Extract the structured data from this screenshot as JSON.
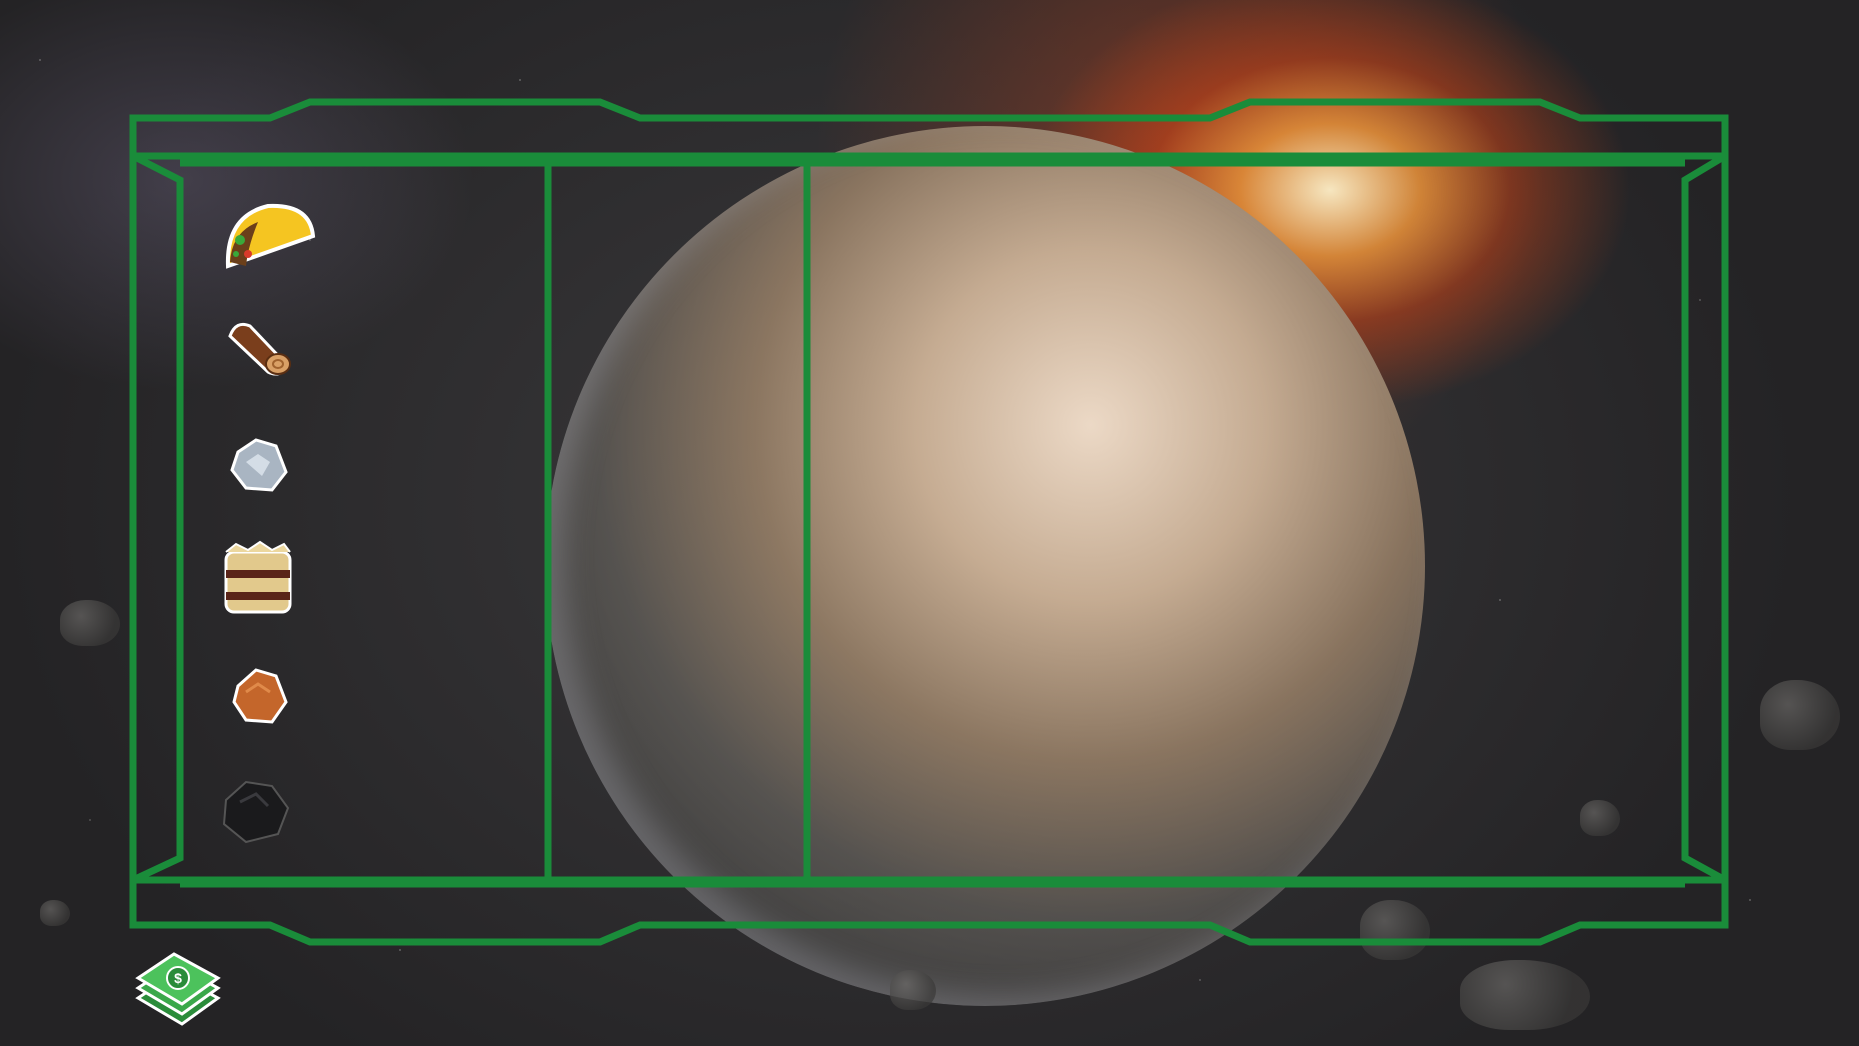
{
  "game": {
    "hud": {
      "frame_color": "#1a8c3a"
    },
    "resources": [
      {
        "id": "food",
        "icon": "taco-icon",
        "value": ""
      },
      {
        "id": "wood",
        "icon": "log-icon",
        "value": ""
      },
      {
        "id": "stone",
        "icon": "stone-icon",
        "value": ""
      },
      {
        "id": "hay",
        "icon": "hay-bale-icon",
        "value": ""
      },
      {
        "id": "copper",
        "icon": "copper-ore-icon",
        "value": ""
      },
      {
        "id": "coal",
        "icon": "coal-icon",
        "value": ""
      }
    ],
    "currency": {
      "icon": "money-stack-icon",
      "value": ""
    }
  }
}
